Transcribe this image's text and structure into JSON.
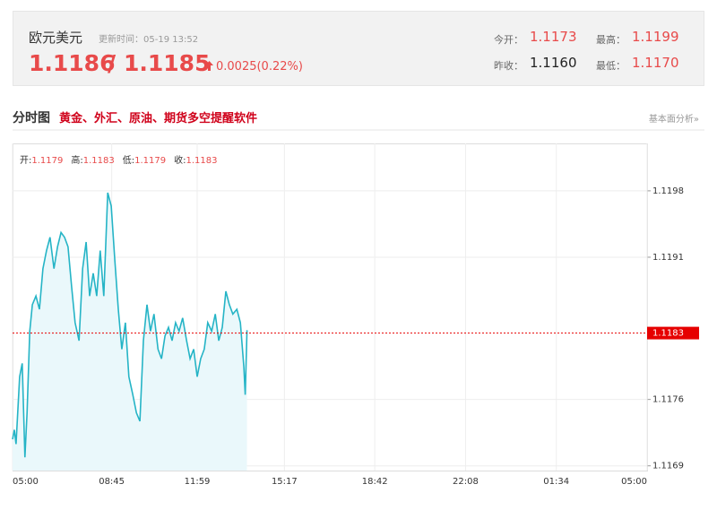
{
  "header": {
    "title": "欧元美元",
    "update": "更新时间：05-19 13:52",
    "bid": "1.1186",
    "separator": "/",
    "ask": "1.1185",
    "change": "0.0025(0.22%)",
    "stats": [
      {
        "label": "今开：",
        "value": "1.1173"
      },
      {
        "label": "最高：",
        "value": "1.1199"
      },
      {
        "label": "昨收：",
        "value": "1.1160"
      },
      {
        "label": "最低：",
        "value": "1.1170"
      }
    ]
  },
  "section": {
    "title": "分时图",
    "promo": "黄金、外汇、原油、期货多空提醒软件",
    "link": "基本面分析»"
  },
  "chart_data": {
    "type": "line",
    "info": [
      {
        "label": "开:",
        "value": "1.1179"
      },
      {
        "label": "高:",
        "value": "1.1183"
      },
      {
        "label": "低:",
        "value": "1.1179"
      },
      {
        "label": "收:",
        "value": "1.1183"
      }
    ],
    "x": [
      0,
      4,
      8,
      16,
      22,
      28,
      33,
      39,
      45,
      53,
      61,
      69,
      77,
      85,
      94,
      102,
      110,
      118,
      126,
      134,
      142,
      151,
      159,
      167,
      175,
      183,
      191,
      199,
      207,
      216,
      224,
      232,
      240,
      248,
      256,
      264,
      273,
      281,
      289,
      297,
      305,
      313,
      321,
      330,
      338,
      346,
      354,
      362,
      370,
      378,
      386,
      395,
      403,
      411,
      419,
      427,
      435,
      443,
      452,
      460,
      468,
      476,
      484,
      492,
      500,
      509,
      517,
      525,
      528,
      532
    ],
    "series": [
      {
        "color": "#25b4c6",
        "values": [
          1.11718,
          1.11728,
          1.11713,
          1.11784,
          1.11798,
          1.11699,
          1.11746,
          1.11832,
          1.1186,
          1.11869,
          1.11855,
          1.11898,
          1.11917,
          1.11931,
          1.11898,
          1.11921,
          1.11936,
          1.11931,
          1.11921,
          1.11879,
          1.11841,
          1.11822,
          1.11898,
          1.11926,
          1.11869,
          1.11893,
          1.11869,
          1.11917,
          1.11869,
          1.11978,
          1.11964,
          1.11907,
          1.11855,
          1.11813,
          1.11841,
          1.11784,
          1.11765,
          1.11746,
          1.11737,
          1.11822,
          1.1186,
          1.11832,
          1.1185,
          1.11813,
          1.11803,
          1.11827,
          1.11836,
          1.11822,
          1.11841,
          1.11832,
          1.11846,
          1.11822,
          1.11803,
          1.11813,
          1.11784,
          1.11803,
          1.11813,
          1.11841,
          1.11832,
          1.1185,
          1.11822,
          1.11836,
          1.11874,
          1.1186,
          1.1185,
          1.11855,
          1.11841,
          1.11794,
          1.11765,
          1.11833
        ]
      }
    ],
    "fill_color": "#eaf8fb",
    "xlim": [
      0,
      1440
    ],
    "xticks": [
      {
        "value": 0,
        "label": "05:00"
      },
      {
        "value": 225,
        "label": "08:45"
      },
      {
        "value": 419,
        "label": "11:59"
      },
      {
        "value": 617,
        "label": "15:17"
      },
      {
        "value": 822,
        "label": "18:42"
      },
      {
        "value": 1028,
        "label": "22:08"
      },
      {
        "value": 1234,
        "label": "01:34"
      },
      {
        "value": 1440,
        "label": "05:00"
      }
    ],
    "ylim": [
      1.11685,
      1.1203
    ],
    "yticks": [
      1.1169,
      1.1176,
      1.1191,
      1.1198
    ],
    "last_price": 1.1183,
    "last_price_color": "#e60000",
    "grid": true
  }
}
